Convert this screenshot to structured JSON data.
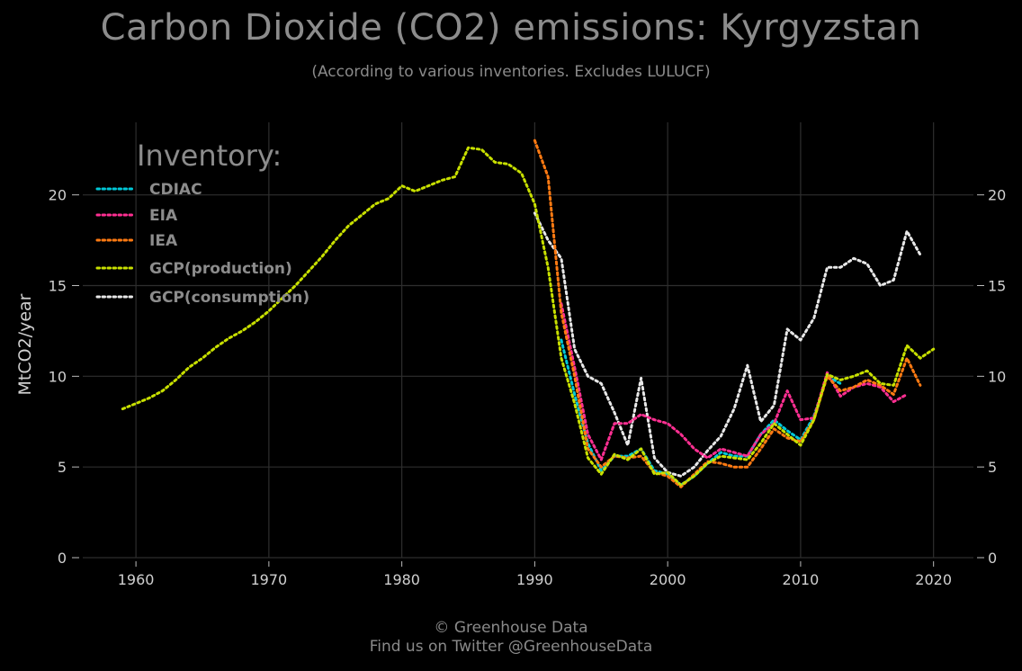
{
  "header": {
    "title": "Carbon Dioxide (CO2) emissions: Kyrgyzstan",
    "subtitle": "(According to various inventories. Excludes LULUCF)"
  },
  "footer": {
    "line1": "© Greenhouse Data",
    "line2": "Find us on Twitter @GreenhouseData"
  },
  "colors": {
    "background": "#000000",
    "grid": "#2e2e2e",
    "CDIAC": "#00c8d8",
    "EIA": "#ff2f92",
    "IEA": "#ff7a12",
    "GCP(production)": "#c8e000",
    "GCP(consumption)": "#e8e8e8"
  },
  "chart_data": {
    "type": "line",
    "title": "Carbon Dioxide (CO2) emissions: Kyrgyzstan",
    "subtitle": "(According to various inventories. Excludes LULUCF)",
    "xlabel": "",
    "ylabel": "MtCO2/year",
    "xlim": [
      1956,
      2023
    ],
    "ylim": [
      0,
      24
    ],
    "xticks": [
      1960,
      1970,
      1980,
      1990,
      2000,
      2010,
      2020
    ],
    "yticks": [
      0,
      5,
      10,
      15,
      20
    ],
    "grid": true,
    "legend_title": "Inventory:",
    "legend_position": "top-left",
    "line_style": "dotted",
    "series": [
      {
        "name": "CDIAC",
        "x": [
          1992,
          1993,
          1994,
          1995,
          1996,
          1997,
          1998,
          1999,
          2000,
          2001,
          2002,
          2003,
          2004,
          2005,
          2006,
          2007,
          2008,
          2009,
          2010,
          2011,
          2012,
          2013
        ],
        "y": [
          12.0,
          9.0,
          6.3,
          4.8,
          5.6,
          5.6,
          6.0,
          4.8,
          4.6,
          4.0,
          4.5,
          5.2,
          5.8,
          5.6,
          5.6,
          6.8,
          7.6,
          7.0,
          6.5,
          7.8,
          10.0,
          9.6
        ]
      },
      {
        "name": "EIA",
        "x": [
          1992,
          1993,
          1994,
          1995,
          1996,
          1997,
          1998,
          1999,
          2000,
          2001,
          2002,
          2003,
          2004,
          2005,
          2006,
          2007,
          2008,
          2009,
          2010,
          2011,
          2012,
          2013,
          2014,
          2015,
          2016,
          2017,
          2018
        ],
        "y": [
          14.0,
          10.5,
          6.8,
          5.4,
          7.4,
          7.4,
          7.9,
          7.6,
          7.4,
          6.8,
          6.0,
          5.5,
          6.0,
          5.8,
          5.6,
          6.8,
          7.4,
          9.2,
          7.6,
          7.7,
          10.2,
          8.9,
          9.4,
          9.6,
          9.4,
          8.6,
          9.0
        ]
      },
      {
        "name": "IEA",
        "x": [
          1990,
          1991,
          1992,
          1993,
          1994,
          1995,
          1996,
          1997,
          1998,
          1999,
          2000,
          2001,
          2002,
          2003,
          2004,
          2005,
          2006,
          2007,
          2008,
          2009,
          2010,
          2011,
          2012,
          2013,
          2014,
          2015,
          2016,
          2017,
          2018,
          2019
        ],
        "y": [
          23.0,
          21.0,
          13.5,
          10.0,
          6.0,
          5.0,
          5.6,
          5.5,
          5.6,
          4.7,
          4.5,
          3.9,
          4.6,
          5.3,
          5.2,
          5.0,
          5.0,
          6.0,
          7.1,
          6.6,
          6.4,
          7.6,
          10.0,
          9.2,
          9.4,
          9.8,
          9.5,
          9.0,
          11.0,
          9.5
        ]
      },
      {
        "name": "GCP(production)",
        "x": [
          1959,
          1960,
          1961,
          1962,
          1963,
          1964,
          1965,
          1966,
          1967,
          1968,
          1969,
          1970,
          1971,
          1972,
          1973,
          1974,
          1975,
          1976,
          1977,
          1978,
          1979,
          1980,
          1981,
          1982,
          1983,
          1984,
          1985,
          1986,
          1987,
          1988,
          1989,
          1990,
          1991,
          1992,
          1993,
          1994,
          1995,
          1996,
          1997,
          1998,
          1999,
          2000,
          2001,
          2002,
          2003,
          2004,
          2005,
          2006,
          2007,
          2008,
          2009,
          2010,
          2011,
          2012,
          2013,
          2014,
          2015,
          2016,
          2017,
          2018,
          2019,
          2020
        ],
        "y": [
          8.2,
          8.5,
          8.8,
          9.2,
          9.8,
          10.5,
          11.0,
          11.6,
          12.1,
          12.5,
          13.0,
          13.6,
          14.3,
          15.0,
          15.8,
          16.6,
          17.5,
          18.3,
          18.9,
          19.5,
          19.8,
          20.5,
          20.2,
          20.5,
          20.8,
          21.0,
          22.6,
          22.5,
          21.8,
          21.7,
          21.2,
          19.5,
          16.0,
          11.0,
          8.5,
          5.5,
          4.6,
          5.7,
          5.4,
          6.0,
          4.6,
          4.7,
          4.0,
          4.5,
          5.2,
          5.6,
          5.5,
          5.4,
          6.3,
          7.4,
          6.8,
          6.2,
          7.6,
          10.1,
          9.8,
          10.0,
          10.3,
          9.6,
          9.5,
          11.7,
          11.0,
          11.5
        ]
      },
      {
        "name": "GCP(consumption)",
        "x": [
          1990,
          1991,
          1992,
          1993,
          1994,
          1995,
          1996,
          1997,
          1998,
          1999,
          2000,
          2001,
          2002,
          2003,
          2004,
          2005,
          2006,
          2007,
          2008,
          2009,
          2010,
          2011,
          2012,
          2013,
          2014,
          2015,
          2016,
          2017,
          2018,
          2019
        ],
        "y": [
          19.0,
          17.5,
          16.5,
          11.5,
          10.0,
          9.6,
          8.0,
          6.2,
          9.9,
          5.5,
          4.7,
          4.5,
          5.0,
          5.9,
          6.7,
          8.2,
          10.6,
          7.5,
          8.4,
          12.6,
          12.0,
          13.2,
          16.0,
          16.0,
          16.5,
          16.2,
          15.0,
          15.3,
          18.0,
          16.7
        ]
      }
    ]
  }
}
